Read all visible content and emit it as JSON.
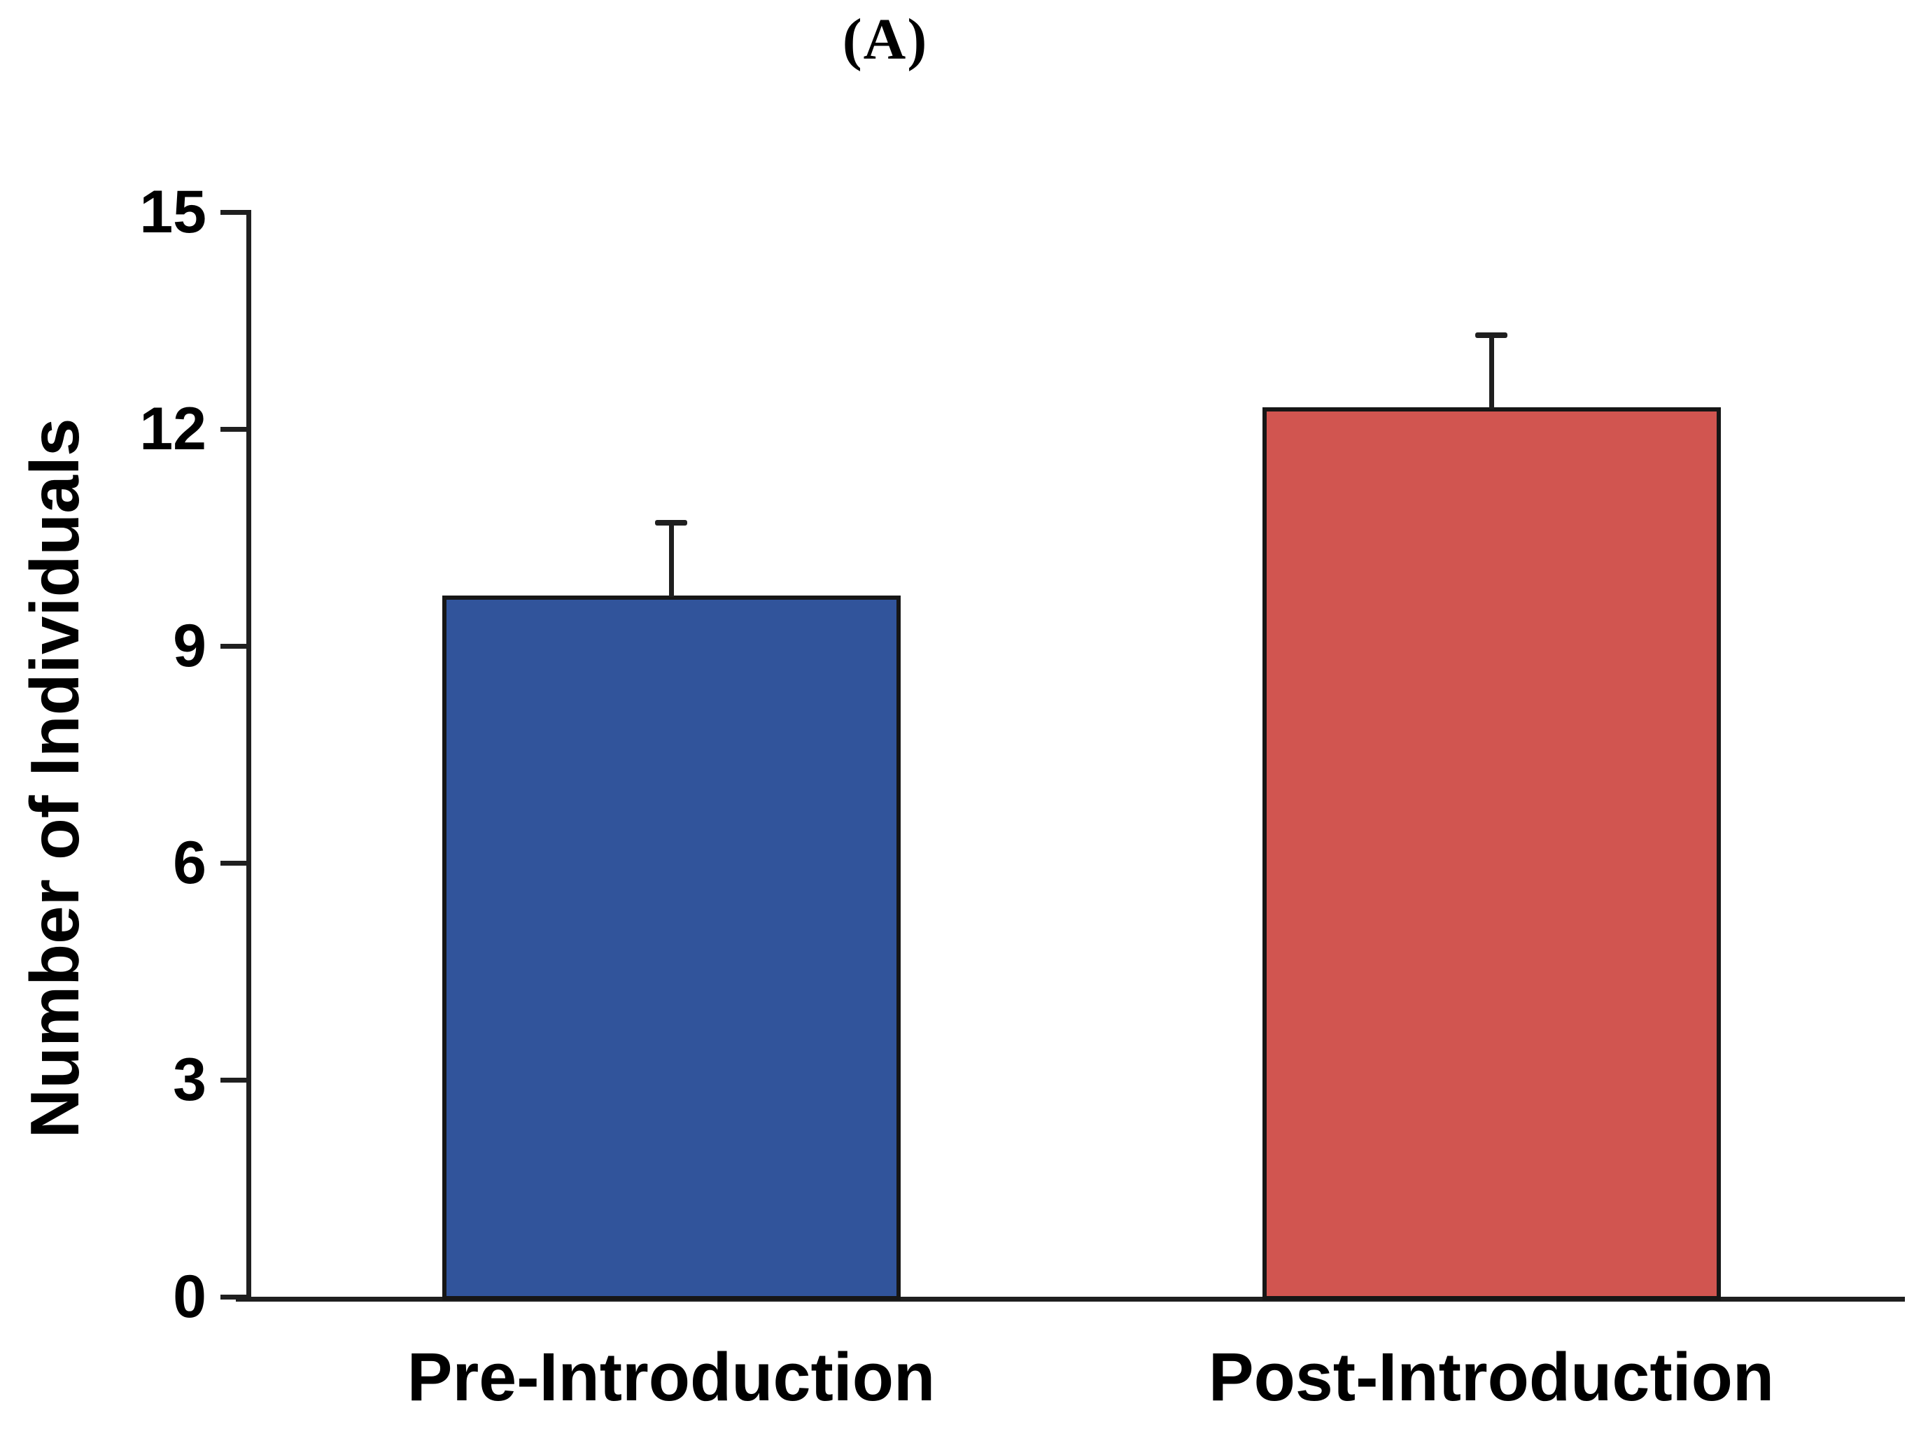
{
  "figure": {
    "panel_label": "(A)"
  },
  "chart_data": {
    "type": "bar",
    "title": "(A)",
    "categories": [
      "Pre-Introduction",
      "Post-Introduction"
    ],
    "values": [
      9.7,
      12.3
    ],
    "errors": [
      1.0,
      1.0
    ],
    "error_bar_direction": "upper",
    "bar_colors": [
      "#31549B",
      "#D15550"
    ],
    "bar_border_color": "#161616",
    "axis_color": "#1f1f1f",
    "xlabel": "",
    "ylabel": "Number of Individuals",
    "yticks": [
      0,
      3,
      6,
      9,
      12,
      15
    ],
    "ylim": [
      0,
      15
    ],
    "grid": false,
    "legend": false
  }
}
